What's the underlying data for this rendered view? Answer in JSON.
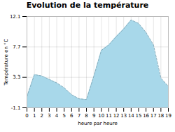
{
  "chart_data": {
    "type": "area",
    "title": "Evolution de la température",
    "xlabel": "heure par heure",
    "ylabel": "Température en °C",
    "x": [
      0,
      1,
      2,
      3,
      4,
      5,
      6,
      7,
      8,
      9,
      10,
      11,
      12,
      13,
      14,
      15,
      16,
      17,
      18,
      19
    ],
    "values": [
      0.5,
      3.7,
      3.5,
      3.0,
      2.5,
      1.8,
      0.8,
      0.2,
      0.1,
      3.5,
      7.2,
      8.0,
      9.2,
      10.3,
      11.6,
      11.1,
      9.8,
      8.0,
      3.2,
      2.0
    ],
    "color": "#a8d8ea",
    "line_style": "dashed",
    "xlim": [
      0,
      19
    ],
    "xticks": [
      0,
      1,
      2,
      3,
      4,
      5,
      6,
      7,
      8,
      9,
      10,
      11,
      12,
      13,
      14,
      15,
      16,
      17,
      18,
      19
    ],
    "ylim": [
      -1.1,
      12.1
    ],
    "yticks": [
      -1.1,
      3.3,
      7.7,
      12.1
    ],
    "grid": true
  }
}
